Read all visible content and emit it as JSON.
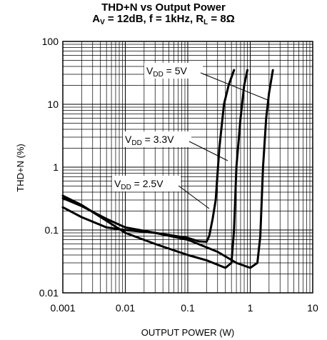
{
  "chart_data": {
    "type": "line",
    "title": "THD+N vs Output Power",
    "subtitle_parts": {
      "av_main": "A",
      "av_sub": "V",
      "av_val": " = 12dB, f = 1kHz, R",
      "rl_sub": "L",
      "rl_val": " = 8Ω"
    },
    "xlabel": "OUTPUT POWER (W)",
    "ylabel": "THD+N (%)",
    "x_scale": "log",
    "y_scale": "log",
    "xlim": [
      0.001,
      10
    ],
    "ylim": [
      0.01,
      100
    ],
    "x_ticks": [
      "0.001",
      "0.01",
      "0.1",
      "1",
      "10"
    ],
    "y_ticks": [
      "0.01",
      "0.1",
      "1",
      "10",
      "100"
    ],
    "grid": true,
    "series": [
      {
        "name": "VDD = 5V",
        "label_main": "V",
        "label_sub": "DD",
        "label_val": " = 5V",
        "x": [
          0.001,
          0.002,
          0.005,
          0.01,
          0.03,
          0.1,
          0.3,
          0.6,
          1.0,
          1.3,
          1.45,
          1.6,
          1.8,
          2.0,
          2.3
        ],
        "y": [
          0.23,
          0.16,
          0.11,
          0.1,
          0.09,
          0.07,
          0.045,
          0.03,
          0.025,
          0.03,
          0.08,
          1.0,
          6.0,
          15.0,
          35.0
        ]
      },
      {
        "name": "VDD = 3.3V",
        "label_main": "V",
        "label_sub": "DD",
        "label_val": " = 3.3V",
        "x": [
          0.001,
          0.002,
          0.005,
          0.01,
          0.03,
          0.1,
          0.2,
          0.4,
          0.5,
          0.55,
          0.6,
          0.7,
          0.8,
          0.9
        ],
        "y": [
          0.35,
          0.25,
          0.14,
          0.09,
          0.06,
          0.04,
          0.033,
          0.025,
          0.03,
          0.1,
          1.0,
          6.0,
          20.0,
          35.0
        ]
      },
      {
        "name": "VDD = 2.5V",
        "label_main": "V",
        "label_sub": "DD",
        "label_val": " = 2.5V",
        "x": [
          0.001,
          0.002,
          0.005,
          0.01,
          0.03,
          0.1,
          0.15,
          0.2,
          0.22,
          0.25,
          0.28,
          0.32,
          0.38,
          0.45,
          0.55
        ],
        "y": [
          0.32,
          0.24,
          0.15,
          0.11,
          0.09,
          0.075,
          0.066,
          0.065,
          0.08,
          0.15,
          0.3,
          2.0,
          10.0,
          20.0,
          35.0
        ]
      }
    ]
  }
}
